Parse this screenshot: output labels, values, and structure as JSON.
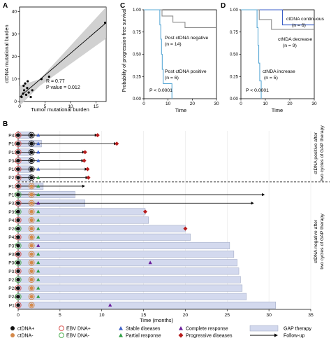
{
  "panel_labels": {
    "A": "A",
    "B": "B",
    "C": "C",
    "D": "D"
  },
  "chart_data": [
    {
      "panel": "A",
      "type": "scatter",
      "xlabel": "Tumor mutational burden",
      "ylabel": "ctDNA mutational burden",
      "xlim": [
        0,
        17
      ],
      "ylim": [
        0,
        42
      ],
      "xticks": [
        "0",
        "5",
        "10",
        "15"
      ],
      "yticks": [
        "0",
        "10",
        "20",
        "30",
        "40"
      ],
      "points": [
        {
          "x": 0.4,
          "y": 2
        },
        {
          "x": 0.7,
          "y": 3.5
        },
        {
          "x": 0.9,
          "y": 5
        },
        {
          "x": 1.1,
          "y": 8
        },
        {
          "x": 1.3,
          "y": 3
        },
        {
          "x": 1.5,
          "y": 6
        },
        {
          "x": 1.8,
          "y": 4
        },
        {
          "x": 2.2,
          "y": 2
        },
        {
          "x": 0.8,
          "y": 7
        },
        {
          "x": 2.5,
          "y": 5
        },
        {
          "x": 1.6,
          "y": 9
        },
        {
          "x": 4.3,
          "y": 10
        },
        {
          "x": 5.8,
          "y": 11
        },
        {
          "x": 16.8,
          "y": 35
        }
      ],
      "fit_line": [
        {
          "x": 0,
          "y": 2
        },
        {
          "x": 17,
          "y": 35
        }
      ],
      "annotations": [
        "R = 0.77",
        "P value = 0.012"
      ]
    },
    {
      "panel": "C",
      "type": "line",
      "ylabel": "Probability of progression-free survival",
      "xlabel": "Time",
      "xlim": [
        0,
        30
      ],
      "ylim": [
        0,
        1
      ],
      "xticks": [
        "0",
        "10",
        "20",
        "30"
      ],
      "yticks": [
        "0.00",
        "0.25",
        "0.50",
        "0.75",
        "1.00"
      ],
      "series": [
        {
          "name": "Post ctDNA negative (n = 14)",
          "color": "#8c8c8c",
          "steps": [
            [
              0,
              1
            ],
            [
              7.5,
              1
            ],
            [
              7.5,
              0.93
            ],
            [
              12,
              0.93
            ],
            [
              12,
              0.86
            ],
            [
              17,
              0.86
            ],
            [
              17,
              0.8
            ],
            [
              30,
              0.8
            ]
          ]
        },
        {
          "name": "Post ctDNA positive (n = 6)",
          "color": "#5aa9d6",
          "steps": [
            [
              0,
              1
            ],
            [
              6.6,
              1
            ],
            [
              6.6,
              0.83
            ],
            [
              7,
              0.83
            ],
            [
              7,
              0.67
            ],
            [
              7.3,
              0.67
            ],
            [
              7.3,
              0.5
            ],
            [
              7.6,
              0.5
            ],
            [
              7.6,
              0.33
            ],
            [
              8,
              0.33
            ],
            [
              8,
              0.17
            ],
            [
              11.6,
              0.17
            ],
            [
              11.6,
              0
            ]
          ]
        }
      ],
      "legend": [
        {
          "line1": "Post ctDNA negative",
          "line2": "(n = 14)"
        },
        {
          "line1": "Post ctDNA positive",
          "line2": "(n = 6)"
        }
      ],
      "pvalue": "P < 0.0001"
    },
    {
      "panel": "D",
      "type": "line",
      "ylabel": "",
      "xlabel": "Time",
      "xlim": [
        0,
        30
      ],
      "ylim": [
        0,
        1
      ],
      "xticks": [
        "0",
        "10",
        "20",
        "30"
      ],
      "yticks": [
        "0.00",
        "0.25",
        "0.50",
        "0.75",
        "1.00"
      ],
      "series": [
        {
          "name": "ctDNA continuous (n = 6)",
          "color": "#3b5fc8",
          "steps": [
            [
              0,
              1
            ],
            [
              17,
              1
            ],
            [
              17,
              0.83
            ],
            [
              30,
              0.83
            ]
          ]
        },
        {
          "name": "ctNDA decrease (n = 9)",
          "color": "#8c8c8c",
          "steps": [
            [
              0,
              1
            ],
            [
              7.5,
              1
            ],
            [
              7.5,
              0.89
            ],
            [
              12.5,
              0.89
            ],
            [
              12.5,
              0.78
            ],
            [
              30,
              0.78
            ]
          ]
        },
        {
          "name": "ctNDA increase (n = 5)",
          "color": "#5aa9d6",
          "steps": [
            [
              0,
              1
            ],
            [
              6.6,
              1
            ],
            [
              6.6,
              0.8
            ],
            [
              7,
              0.8
            ],
            [
              7,
              0.6
            ],
            [
              7.3,
              0.6
            ],
            [
              7.3,
              0.4
            ],
            [
              7.7,
              0.4
            ],
            [
              7.7,
              0.2
            ],
            [
              8.3,
              0.2
            ],
            [
              8.3,
              0
            ]
          ]
        }
      ],
      "legend": [
        {
          "line1": "ctDNA continuous",
          "line2": "(n = 6)"
        },
        {
          "line1": "ctNDA decrease",
          "line2": "(n = 9)"
        },
        {
          "line1": "ctNDA increase",
          "line2": "(n = 5)"
        }
      ],
      "pvalue": "P < 0.0001"
    },
    {
      "panel": "B",
      "type": "swimmer",
      "xlabel": "Time (months)",
      "xlim": [
        0,
        35
      ],
      "xticks": [
        "0",
        "5",
        "10",
        "15",
        "20",
        "25",
        "30",
        "35"
      ],
      "group_labels": [
        {
          "line1": "ctDNA positive after",
          "line2": "two cycles of GAP therapy"
        },
        {
          "line1": "ctDNA negative after",
          "line2": "two cycles of GAP therapy"
        }
      ],
      "patients": [
        {
          "id": "P43",
          "bar": 1.5,
          "end": 9.5,
          "arrow": true,
          "progression": 9.5,
          "stable": 2.4,
          "partial": null,
          "complete": null
        },
        {
          "id": "P16",
          "bar": 2.8,
          "end": 11.8,
          "arrow": true,
          "progression": 11.8,
          "stable": 2.4,
          "partial": null,
          "complete": null
        },
        {
          "id": "P13",
          "bar": 1.5,
          "end": 8.0,
          "arrow": true,
          "progression": 8.0,
          "stable": 2.4,
          "partial": null,
          "complete": null
        },
        {
          "id": "P34",
          "bar": 1.5,
          "end": 7.9,
          "arrow": true,
          "progression": 7.9,
          "stable": 2.4,
          "partial": null,
          "complete": null
        },
        {
          "id": "P10",
          "bar": 1.5,
          "end": 8.3,
          "arrow": true,
          "progression": 8.3,
          "stable": 2.4,
          "partial": null,
          "complete": null
        },
        {
          "id": "P27",
          "bar": 1.5,
          "end": 8.4,
          "arrow": true,
          "progression": 8.4,
          "stable": null,
          "partial": 2.4,
          "complete": null
        },
        {
          "id": "P12",
          "bar": 3.0,
          "end": 8.0,
          "arrow": true,
          "progression": null,
          "stable": null,
          "partial": 2.4,
          "complete": null
        },
        {
          "id": "P15",
          "bar": 6.8,
          "end": 29.5,
          "arrow": true,
          "progression": null,
          "stable": null,
          "partial": 2.4,
          "complete": null
        },
        {
          "id": "P32",
          "bar": 8.0,
          "end": 28.2,
          "arrow": true,
          "progression": null,
          "stable": null,
          "partial": null,
          "complete": 2.4
        },
        {
          "id": "P39",
          "bar": 15.2,
          "end": 15.2,
          "arrow": false,
          "progression": 15.2,
          "stable": null,
          "partial": 2.4,
          "complete": null
        },
        {
          "id": "P41",
          "bar": 15.6,
          "end": 15.6,
          "arrow": false,
          "progression": null,
          "stable": null,
          "partial": 2.4,
          "complete": null
        },
        {
          "id": "P26",
          "bar": 20.0,
          "end": 20.0,
          "arrow": false,
          "progression": 20.0,
          "stable": null,
          "partial": 2.4,
          "complete": null
        },
        {
          "id": "P42",
          "bar": 20.6,
          "end": 20.6,
          "arrow": false,
          "progression": null,
          "stable": null,
          "partial": 2.4,
          "complete": null
        },
        {
          "id": "P37",
          "bar": 25.3,
          "end": 25.3,
          "arrow": false,
          "progression": null,
          "stable": null,
          "partial": null,
          "complete": 2.4
        },
        {
          "id": "P38",
          "bar": 25.8,
          "end": 25.8,
          "arrow": false,
          "progression": null,
          "stable": null,
          "partial": 2.4,
          "complete": null
        },
        {
          "id": "P30",
          "bar": 26.2,
          "end": 26.2,
          "arrow": false,
          "progression": null,
          "stable": null,
          "partial": 2.4,
          "complete": 15.8
        },
        {
          "id": "P31",
          "bar": 26.4,
          "end": 26.4,
          "arrow": false,
          "progression": null,
          "stable": null,
          "partial": 2.4,
          "complete": null
        },
        {
          "id": "P21",
          "bar": 26.6,
          "end": 26.6,
          "arrow": false,
          "progression": null,
          "stable": null,
          "partial": 2.4,
          "complete": null
        },
        {
          "id": "P28",
          "bar": 26.8,
          "end": 26.8,
          "arrow": false,
          "progression": null,
          "stable": null,
          "partial": 2.4,
          "complete": null
        },
        {
          "id": "P24",
          "bar": 27.3,
          "end": 27.3,
          "arrow": false,
          "progression": null,
          "stable": null,
          "partial": 2.4,
          "complete": null
        },
        {
          "id": "P11",
          "bar": 30.8,
          "end": 30.8,
          "arrow": false,
          "progression": null,
          "stable": null,
          "partial": null,
          "complete": 11.0
        }
      ],
      "legend": [
        {
          "key": "ctdna_pos",
          "label": "ctDNA+"
        },
        {
          "key": "ctdna_neg",
          "label": "ctDNA-"
        },
        {
          "key": "ebv_pos",
          "label": "EBV DNA+"
        },
        {
          "key": "ebv_neg",
          "label": "EBV DNA-"
        },
        {
          "key": "stable",
          "label": "Stable diseases"
        },
        {
          "key": "partial",
          "label": "Partial response"
        },
        {
          "key": "complete",
          "label": "Complete response"
        },
        {
          "key": "progressive",
          "label": "Progressive diseases"
        },
        {
          "key": "gap",
          "label": "GAP therapy"
        },
        {
          "key": "followup",
          "label": "Follow-up"
        }
      ]
    }
  ],
  "colors": {
    "ctdna_pos": "#111111",
    "ctdna_neg": "#d4894a",
    "ebv_pos": "#d9534f",
    "ebv_neg": "#4caf50",
    "stable": "#3b5fc8",
    "partial": "#2e9e44",
    "complete": "#6a1b9a",
    "progressive": "#b71c1c",
    "gap": "#d3d9ee",
    "gap_border": "#9aa3bf"
  }
}
